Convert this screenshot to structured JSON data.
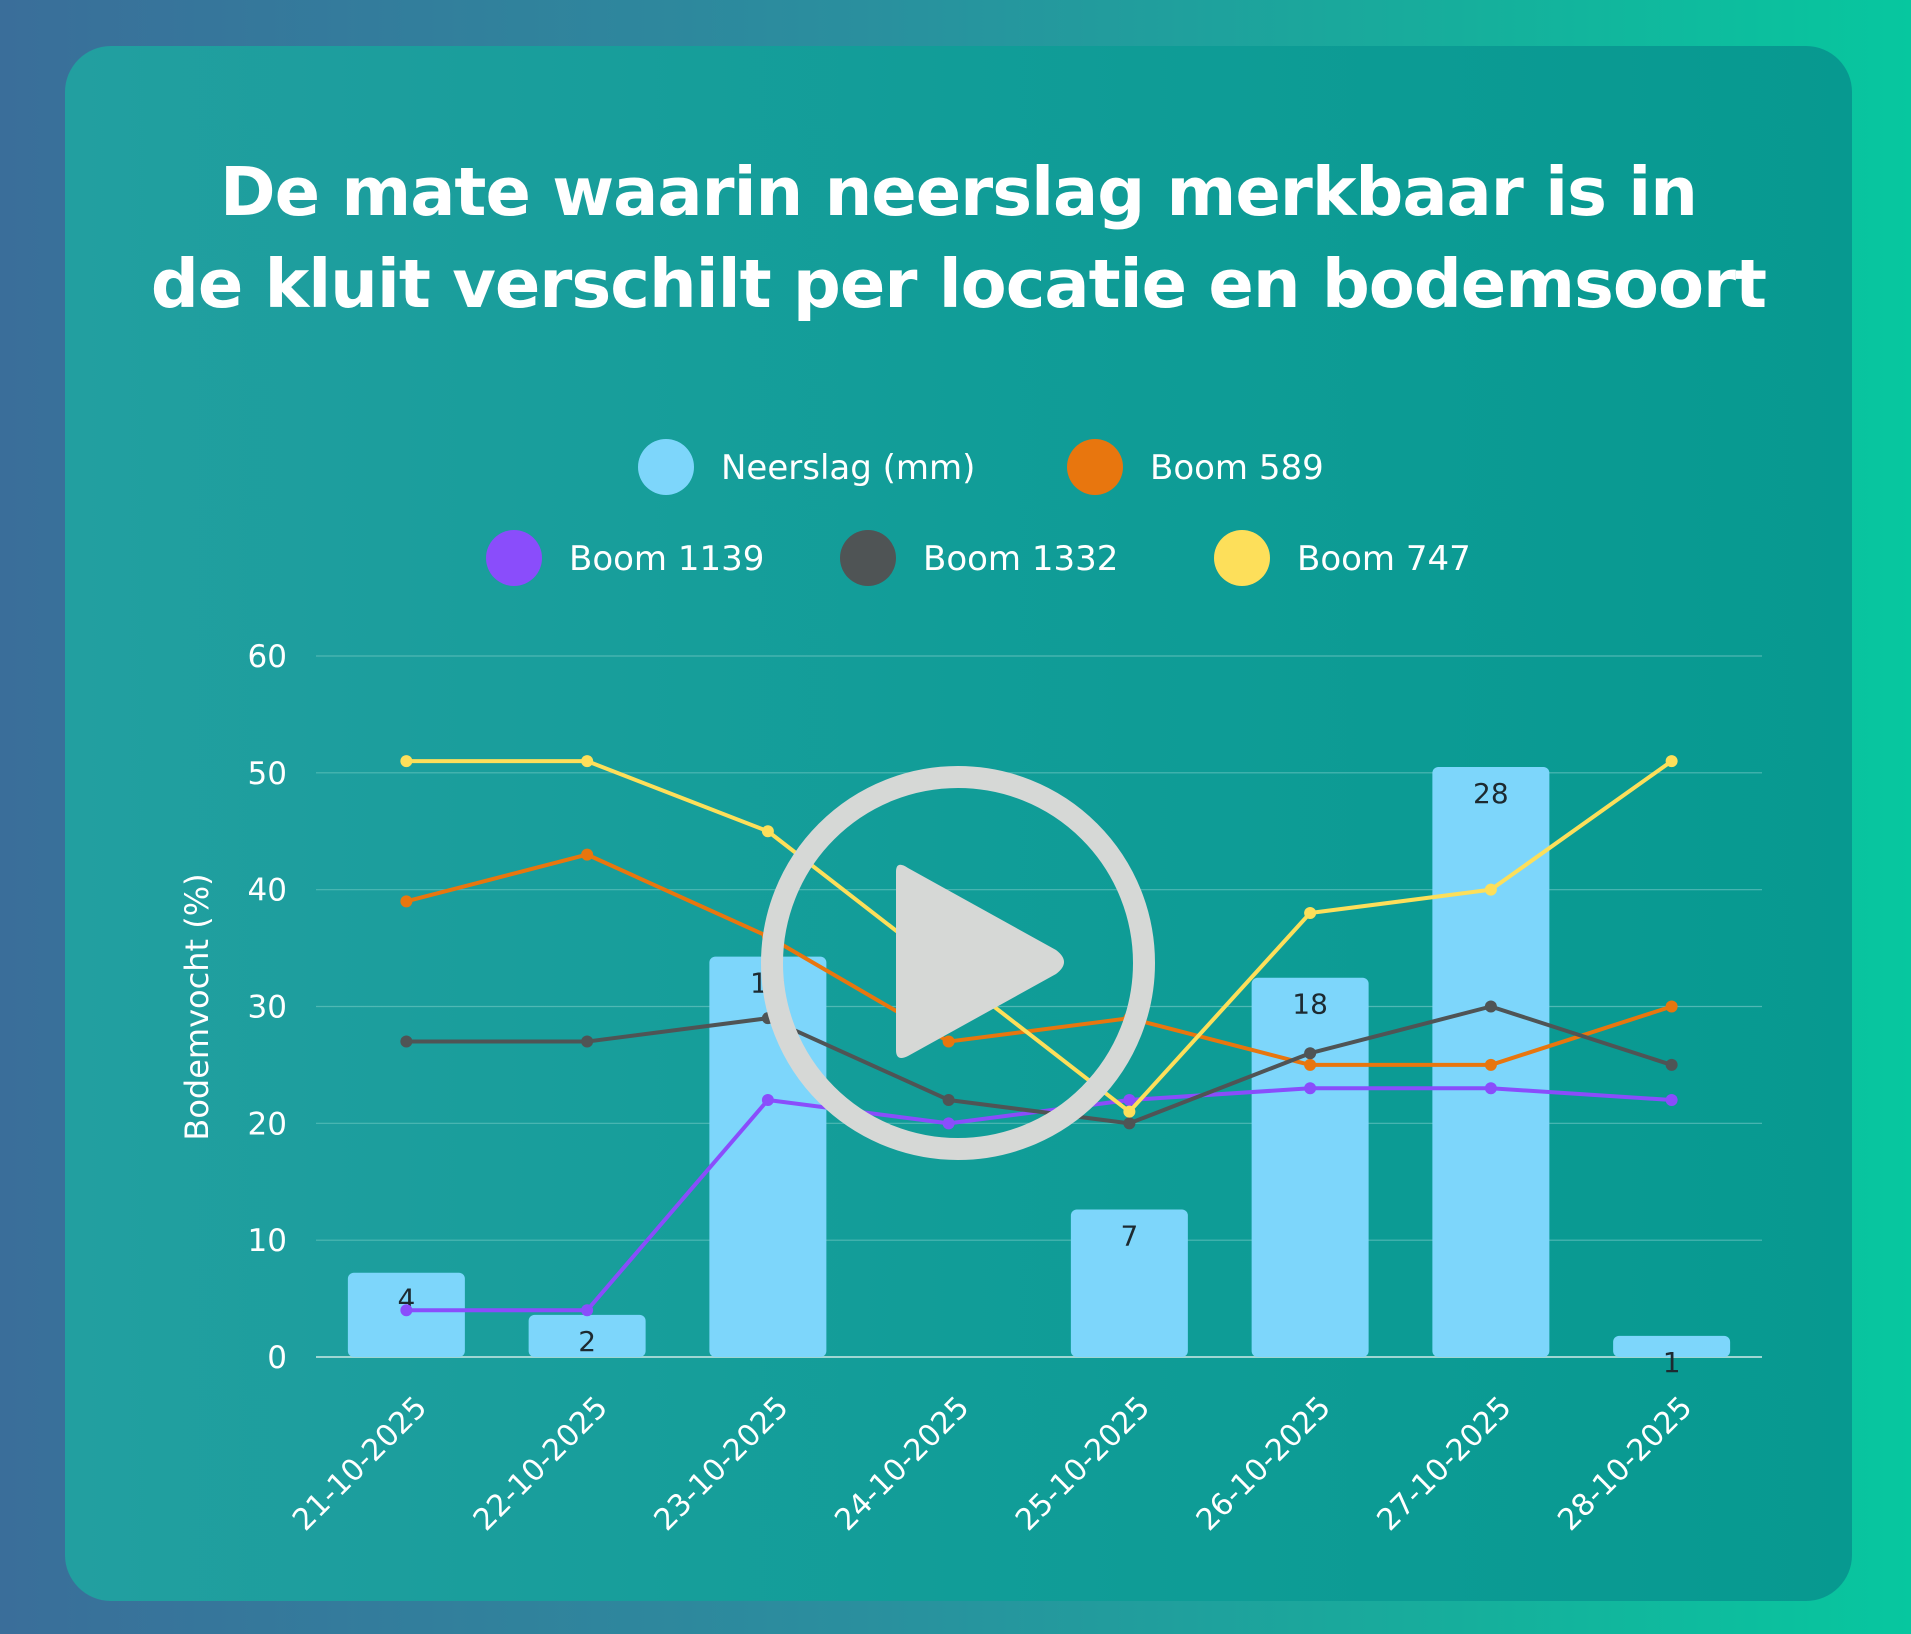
{
  "chart_data": {
    "type": "bar",
    "title": "De mate waarin neerslag merkbaar is in de kluit verschilt per locatie en bodemsoort",
    "ylabel": "Bodemvocht (%)",
    "xlabel": "",
    "ylim": [
      0,
      60
    ],
    "yticks": [
      "0",
      "10",
      "20",
      "30",
      "40",
      "50",
      "60"
    ],
    "grid": true,
    "legend_position": "top",
    "categories": [
      "21-10-2025",
      "22-10-2025",
      "23-10-2025",
      "24-10-2025",
      "25-10-2025",
      "26-10-2025",
      "27-10-2025",
      "28-10-2025"
    ],
    "bars": {
      "name": "Neerslag (mm)",
      "color": "#7dd6fb",
      "values": [
        4,
        2,
        19,
        0,
        7,
        18,
        28,
        1
      ],
      "labels": [
        "4",
        "2",
        "19",
        "",
        "7",
        "18",
        "28",
        "1"
      ]
    },
    "series": [
      {
        "name": "Boom 589",
        "type": "line",
        "color": "#e8760e",
        "values": [
          39,
          43,
          36,
          27,
          29,
          25,
          25,
          30
        ]
      },
      {
        "name": "Boom 1139",
        "type": "line",
        "color": "#8a4dfb",
        "values": [
          4,
          4,
          22,
          20,
          22,
          23,
          23,
          22
        ]
      },
      {
        "name": "Boom 1332",
        "type": "line",
        "color": "#4f5455",
        "values": [
          27,
          27,
          29,
          22,
          20,
          26,
          30,
          25
        ]
      },
      {
        "name": "Boom 747",
        "type": "line",
        "color": "#fddf5a",
        "values": [
          51,
          51,
          45,
          33,
          21,
          38,
          40,
          51
        ]
      }
    ],
    "legend": [
      {
        "name": "Neerslag (mm)",
        "color": "#7dd6fb"
      },
      {
        "name": "Boom 589",
        "color": "#e8760e"
      },
      {
        "name": "Boom 1139",
        "color": "#8a4dfb"
      },
      {
        "name": "Boom 1332",
        "color": "#4f5455"
      },
      {
        "name": "Boom 747",
        "color": "#fddf5a"
      }
    ]
  },
  "overlay": {
    "icon": "play-icon"
  }
}
